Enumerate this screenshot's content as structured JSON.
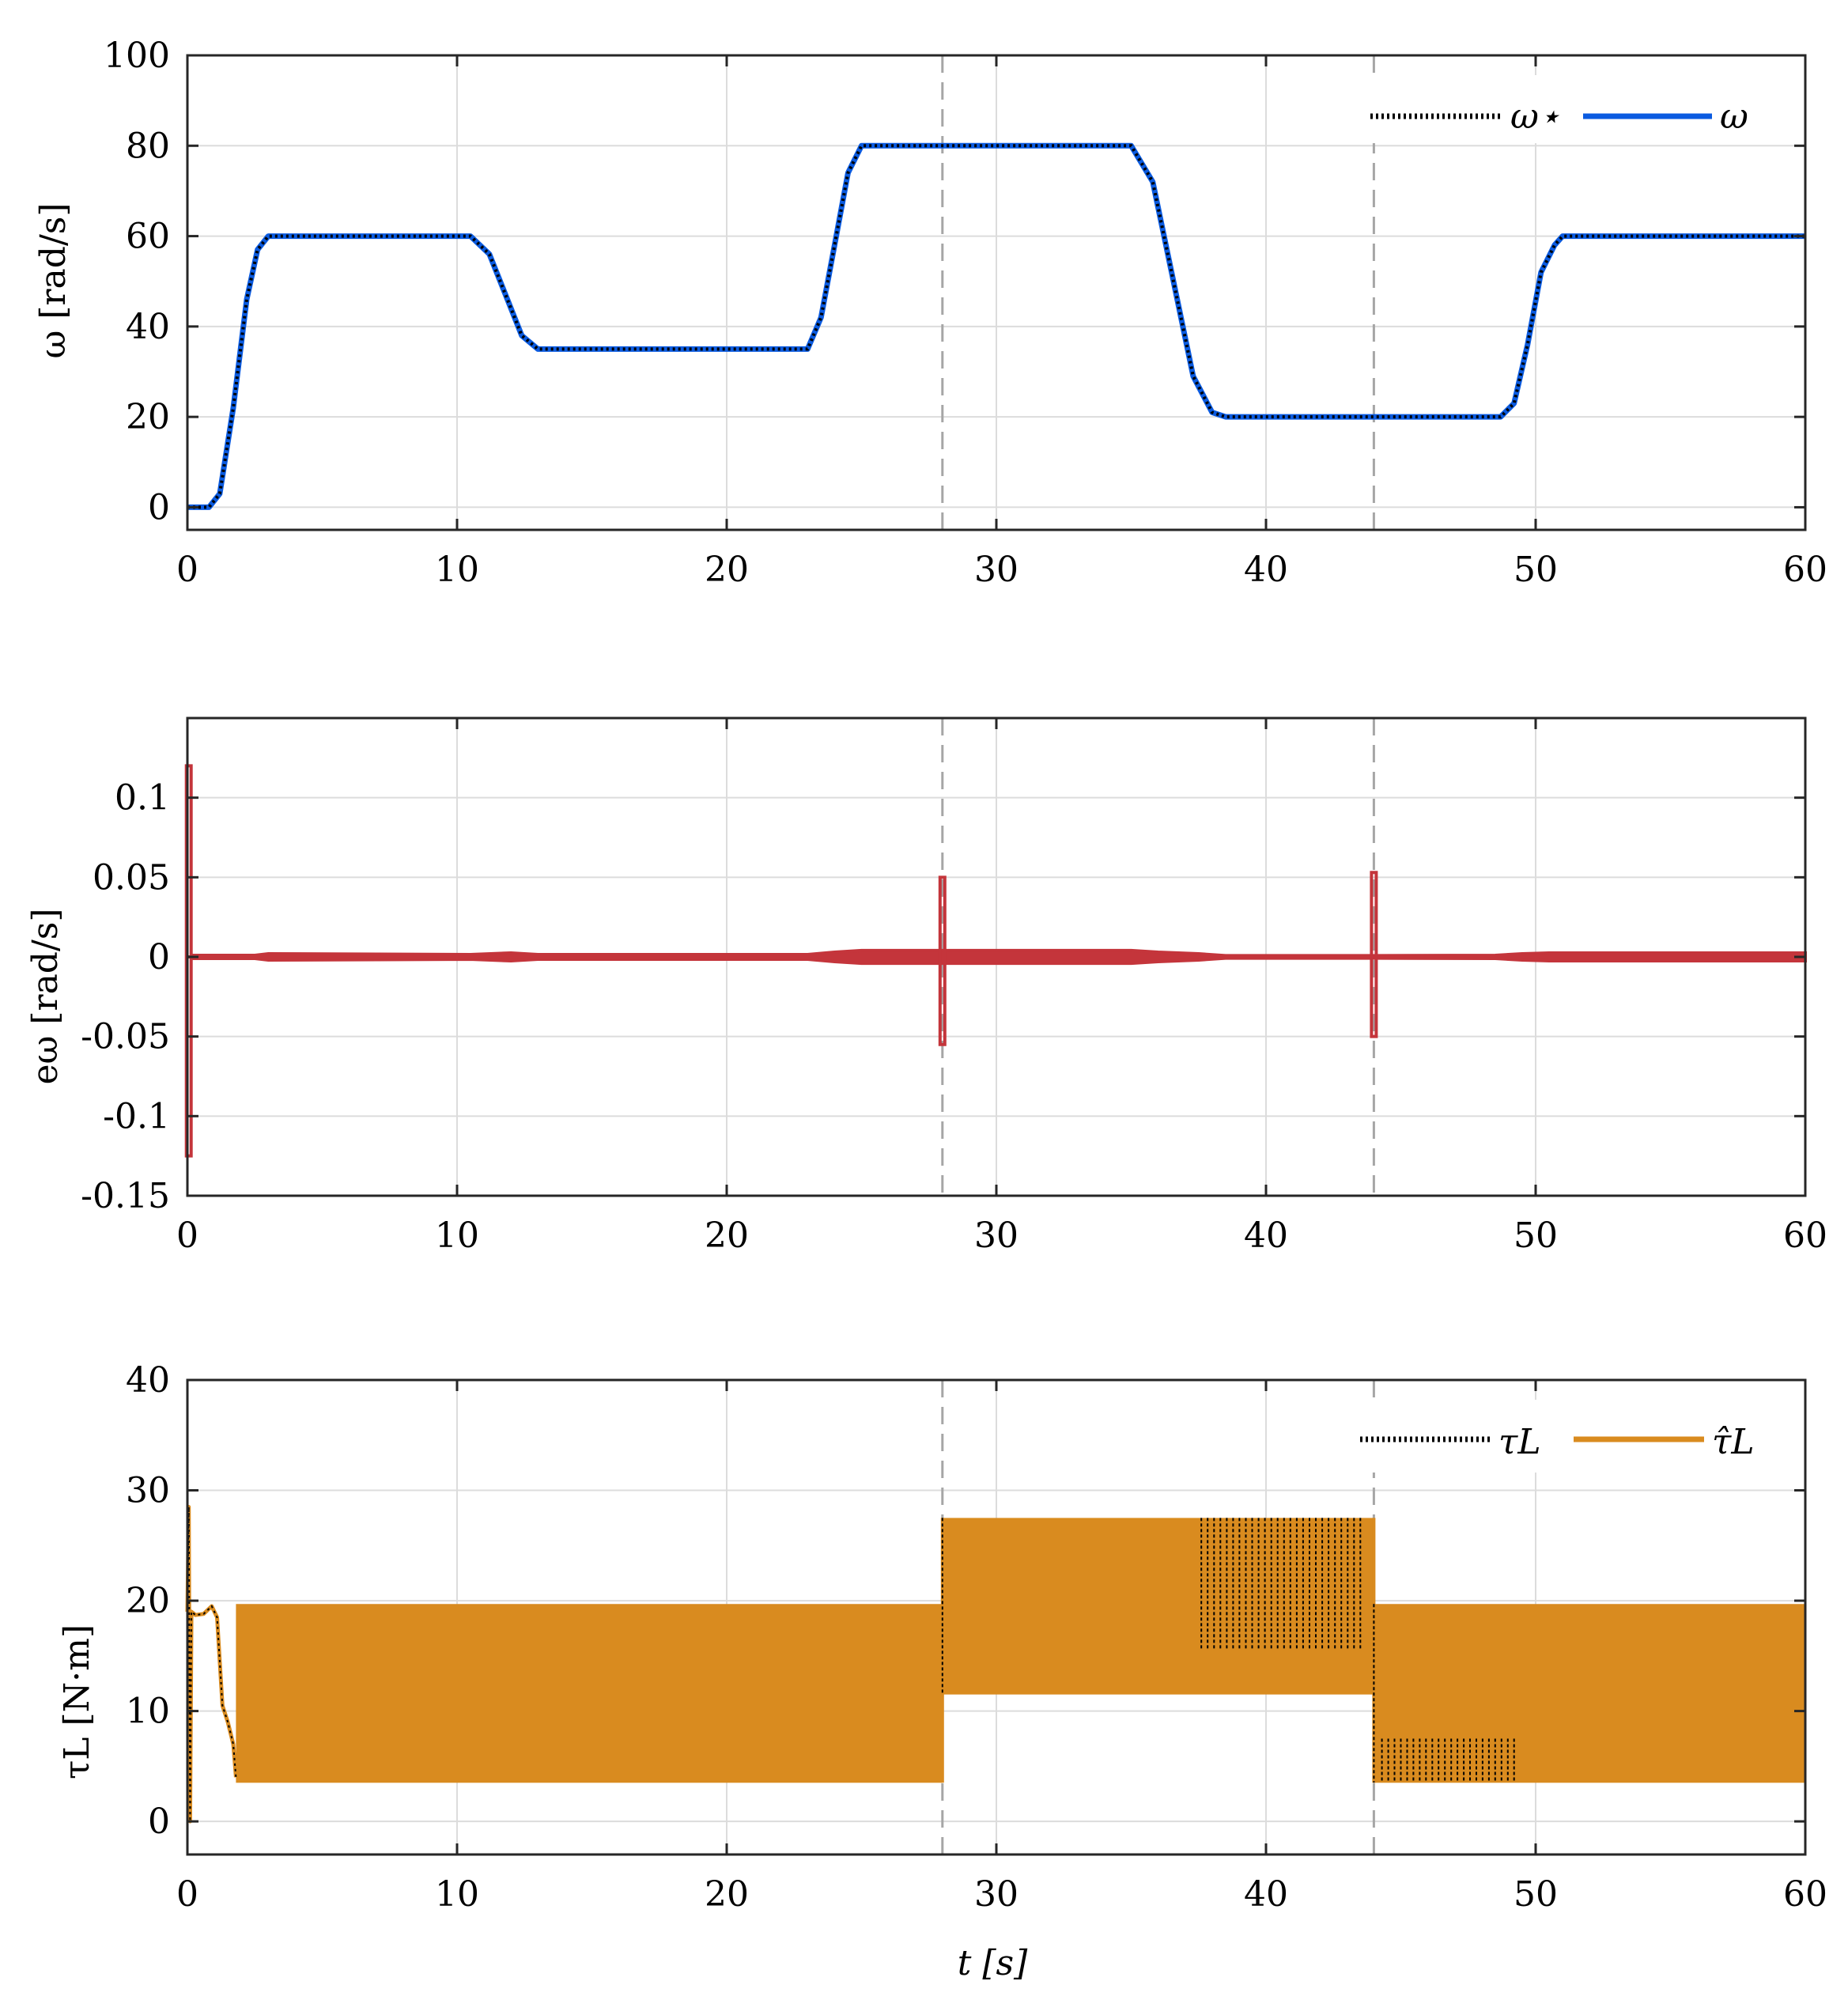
{
  "colors": {
    "omega": "#0b5be0",
    "omega_ref": "#000000",
    "error": "#c4353b",
    "torque_est": "#d98b1f",
    "torque_ref": "#000000",
    "grid": "#dcdcdc",
    "event_line": "#a6a6a6"
  },
  "chart_data": [
    {
      "type": "line",
      "id": "speed",
      "ylabel": "ω [rad/s]",
      "xlim": [
        0,
        60
      ],
      "ylim": [
        -5,
        100
      ],
      "xticks": [
        0,
        10,
        20,
        30,
        40,
        50,
        60
      ],
      "yticks": [
        0,
        20,
        40,
        60,
        80,
        100
      ],
      "xtick_labels": [
        "0",
        "10",
        "20",
        "30",
        "40",
        "50",
        "60"
      ],
      "ytick_labels": [
        "0",
        "20",
        "40",
        "60",
        "80",
        "100"
      ],
      "grid": true,
      "event_lines_x": [
        28,
        44
      ],
      "legend": {
        "placement": "top-right",
        "entries": [
          "ω⋆",
          "ω"
        ]
      },
      "series": [
        {
          "name": "ω⋆",
          "style": "dotted",
          "x": [
            0,
            0.8,
            1.2,
            1.7,
            2.2,
            2.6,
            3.0,
            10.5,
            11.2,
            11.8,
            12.4,
            13.0,
            23.0,
            23.5,
            24.0,
            24.5,
            25.0,
            35.0,
            35.8,
            36.5,
            37.3,
            38.0,
            38.5,
            48.7,
            49.2,
            49.7,
            50.2,
            50.7,
            51.0,
            60
          ],
          "y": [
            0,
            0,
            3,
            22,
            46,
            57,
            60,
            60,
            56,
            47,
            38,
            35,
            35,
            42,
            58,
            74,
            80,
            80,
            72,
            52,
            29,
            21,
            20,
            20,
            23,
            36,
            52,
            58,
            60,
            60
          ]
        },
        {
          "name": "ω",
          "style": "solid",
          "x": [
            0,
            0.8,
            1.2,
            1.7,
            2.2,
            2.6,
            3.0,
            10.5,
            11.2,
            11.8,
            12.4,
            13.0,
            23.0,
            23.5,
            24.0,
            24.5,
            25.0,
            35.0,
            35.8,
            36.5,
            37.3,
            38.0,
            38.5,
            48.7,
            49.2,
            49.7,
            50.2,
            50.7,
            51.0,
            60
          ],
          "y": [
            0,
            0,
            3,
            22,
            46,
            57,
            60,
            60,
            56,
            47,
            38,
            35,
            35,
            42,
            58,
            74,
            80,
            80,
            72,
            52,
            29,
            21,
            20,
            20,
            23,
            36,
            52,
            58,
            60,
            60
          ]
        }
      ]
    },
    {
      "type": "line",
      "id": "error",
      "ylabel": "eω [rad/s]",
      "xlim": [
        0,
        60
      ],
      "ylim": [
        -0.15,
        0.15
      ],
      "xticks": [
        0,
        10,
        20,
        30,
        40,
        50,
        60
      ],
      "yticks": [
        -0.15,
        -0.1,
        -0.05,
        0,
        0.05,
        0.1
      ],
      "xtick_labels": [
        "0",
        "10",
        "20",
        "30",
        "40",
        "50",
        "60"
      ],
      "ytick_labels": [
        "-0.15",
        "-0.1",
        "-0.05",
        "0",
        "0.05",
        "0.1"
      ],
      "grid": true,
      "event_lines_x": [
        28,
        44
      ],
      "series": [
        {
          "style": "solid",
          "envelope_x": [
            0.25,
            2.5,
            3.0,
            10.5,
            12.0,
            13.0,
            23.0,
            24.0,
            25.0,
            27.9,
            28.1,
            30.0,
            35.0,
            36.0,
            37.5,
            38.5,
            43.9,
            44.1,
            48.5,
            49.5,
            50.5,
            60
          ],
          "envelope_amp": [
            0.001,
            0.001,
            0.002,
            0.0015,
            0.0025,
            0.0015,
            0.0015,
            0.003,
            0.004,
            0.004,
            0.004,
            0.004,
            0.004,
            0.003,
            0.002,
            0.0008,
            0.0008,
            0.0008,
            0.001,
            0.002,
            0.0025,
            0.0025
          ],
          "spikes": [
            {
              "x": 0.05,
              "max": 0.12,
              "min": -0.125
            },
            {
              "x": 28.0,
              "max": 0.05,
              "min": -0.055
            },
            {
              "x": 44.0,
              "max": 0.053,
              "min": -0.05
            }
          ]
        }
      ]
    },
    {
      "type": "line",
      "id": "torque",
      "ylabel": "τL [N·m]",
      "xlabel": "t [s]",
      "xlim": [
        0,
        60
      ],
      "ylim": [
        -3,
        40
      ],
      "xticks": [
        0,
        10,
        20,
        30,
        40,
        50,
        60
      ],
      "yticks": [
        0,
        10,
        20,
        30,
        40
      ],
      "xtick_labels": [
        "0",
        "10",
        "20",
        "30",
        "40",
        "50",
        "60"
      ],
      "ytick_labels": [
        "0",
        "10",
        "20",
        "30",
        "40"
      ],
      "grid": true,
      "event_lines_x": [
        28,
        44
      ],
      "legend": {
        "placement": "top-right",
        "entries": [
          "τL",
          "τ̂L"
        ]
      },
      "series": [
        {
          "name": "τ̂L",
          "style": "solid",
          "initial_x": [
            0,
            0.05,
            0.1,
            0.15,
            0.3,
            0.6,
            0.9,
            1.1,
            1.3,
            1.5,
            1.7,
            1.8
          ],
          "initial_y": [
            19,
            28.5,
            0,
            19,
            18.7,
            18.8,
            19.5,
            18.5,
            10.5,
            9,
            7,
            4
          ],
          "bands": [
            {
              "x0": 1.8,
              "x1": 28.0,
              "lower": 3.5,
              "upper": 19.7
            },
            {
              "x0": 28.0,
              "x1": 44.0,
              "lower": 11.5,
              "upper": 27.5
            },
            {
              "x0": 44.0,
              "x1": 60.0,
              "lower": 3.5,
              "upper": 19.7
            }
          ]
        },
        {
          "name": "τL",
          "style": "dotted",
          "bursts": [
            {
              "x0": 37.6,
              "x1": 43.5,
              "lower": 15.5,
              "upper": 27.5
            },
            {
              "x0": 44.3,
              "x1": 49.2,
              "lower": 3.7,
              "upper": 7.5
            }
          ]
        }
      ]
    }
  ]
}
